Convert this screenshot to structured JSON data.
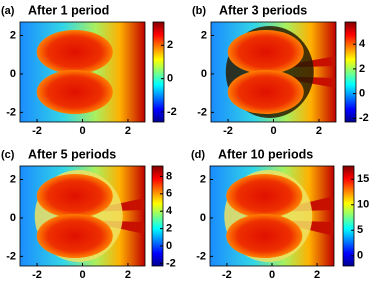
{
  "chart_data": [
    {
      "type": "heatmap",
      "panel_label": "(a)",
      "title": "After 1 period",
      "colormap": "jet",
      "xlim": [
        -2.75,
        2.75
      ],
      "xticks": [
        -2,
        0,
        2
      ],
      "ylim": [
        -2.5,
        2.7
      ],
      "yticks": [
        -2,
        0,
        2
      ],
      "colorbar_lim": [
        -2.6,
        3.4
      ],
      "colorbar_ticks": [
        -2,
        0,
        2
      ]
    },
    {
      "type": "heatmap",
      "panel_label": "(b)",
      "title": "After 3 periods",
      "colormap": "jet",
      "xlim": [
        -2.75,
        2.75
      ],
      "xticks": [
        -2,
        0,
        2
      ],
      "ylim": [
        -2.5,
        2.7
      ],
      "yticks": [
        -2,
        0,
        2
      ],
      "colorbar_lim": [
        -2.3,
        5.8
      ],
      "colorbar_ticks": [
        -2,
        0,
        2,
        4
      ]
    },
    {
      "type": "heatmap",
      "panel_label": "(c)",
      "title": "After 5 periods",
      "colormap": "jet",
      "xlim": [
        -2.75,
        2.75
      ],
      "xticks": [
        -2,
        0,
        2
      ],
      "ylim": [
        -2.5,
        2.7
      ],
      "yticks": [
        -2,
        0,
        2
      ],
      "colorbar_lim": [
        -2.3,
        9.2
      ],
      "colorbar_ticks": [
        -2,
        0,
        2,
        4,
        6,
        8
      ]
    },
    {
      "type": "heatmap",
      "panel_label": "(d)",
      "title": "After 10 periods",
      "colormap": "jet",
      "xlim": [
        -2.75,
        2.75
      ],
      "xticks": [
        -2,
        0,
        2
      ],
      "ylim": [
        -2.5,
        2.7
      ],
      "yticks": [
        -2,
        0,
        2
      ],
      "colorbar_lim": [
        -2,
        17.6
      ],
      "colorbar_ticks": [
        0,
        5,
        10,
        15
      ]
    }
  ]
}
